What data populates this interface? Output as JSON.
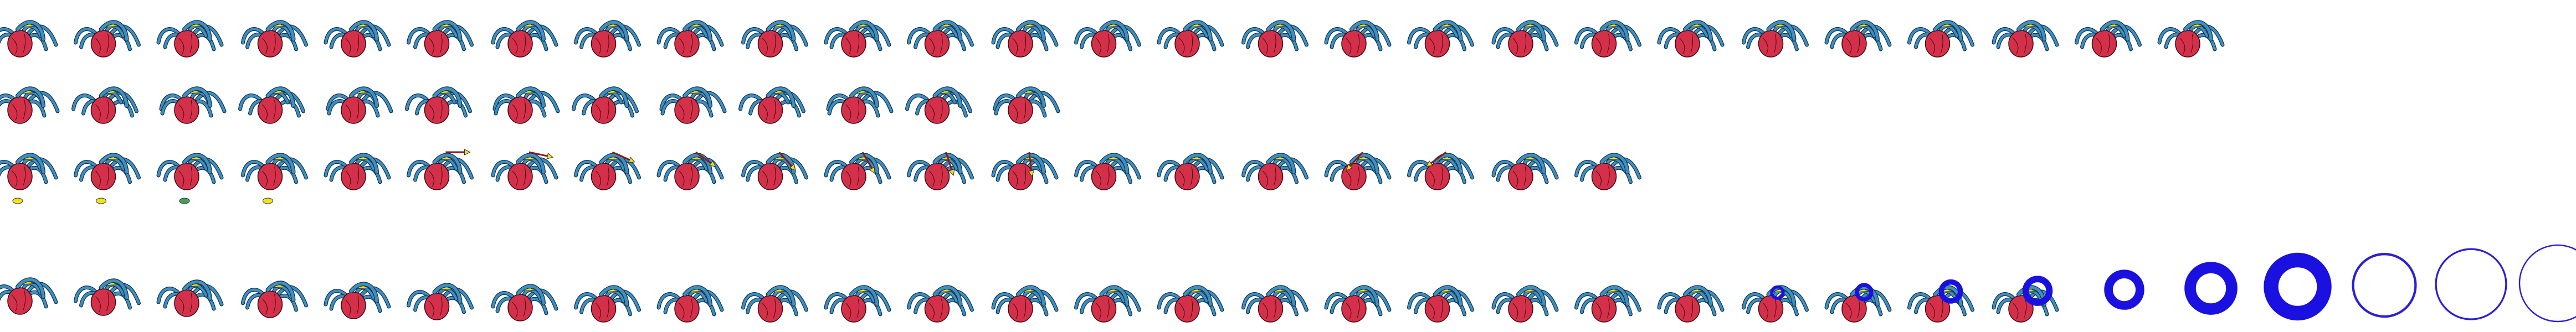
{
  "sheet": {
    "background": "#ffffff",
    "palette": {
      "body_red": "#d4304a",
      "body_stroke": "#3a0a10",
      "leg_blue": "#3f8fc0",
      "leg_stroke": "#0f2f48",
      "cap_yellow": "#f2e21c",
      "cap_green": "#3ea35a",
      "effect_blue": "#1a10e0",
      "effect_outline": "#2b1fd8"
    },
    "rows": [
      {
        "name": "idle-row",
        "frames": 27,
        "pose": "idle",
        "prop": "none"
      },
      {
        "name": "walk-row",
        "frames": 13,
        "pose": "walk",
        "prop": "none"
      },
      {
        "name": "throw-row",
        "frames": 20,
        "pose": "throw",
        "prop": "arrow",
        "arrow_frames": [
          5,
          6,
          7,
          8,
          9,
          10,
          11,
          12,
          16,
          17
        ]
      },
      {
        "name": "death-row",
        "frames": 31,
        "pose": "death",
        "prop": "blue-rings",
        "ring_start_frame": 21
      }
    ],
    "ring_levels": [
      0.06,
      0.1,
      0.16,
      0.22,
      0.32,
      0.45,
      0.6,
      0.72,
      0.82,
      0.9,
      0.96,
      1.0
    ]
  }
}
